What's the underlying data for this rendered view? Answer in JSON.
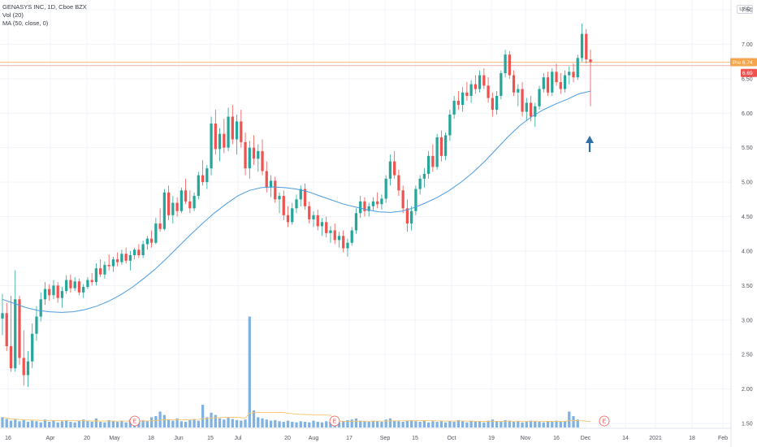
{
  "legend": {
    "symbol": "GENASYS INC, 1D, Cboe BZX",
    "volume": "Vol (20)",
    "ma": "MA (50, close, 0)"
  },
  "currency": "USD",
  "price_badges": {
    "orange": "6.74",
    "red": "6.69",
    "orange_prefix": "Pre"
  },
  "colors": {
    "up": "#26a69a",
    "down": "#ef5350",
    "ma": "#4a9be0",
    "volume_up": "#7fb2e0",
    "volume_down": "#7fb2e0",
    "volume_ma": "#f5c46a",
    "arrow": "#2f6fa8",
    "hline_orange": "#f5a64c",
    "hline_red": "#ef5350"
  },
  "chart_data": {
    "type": "candlestick",
    "y_axis": {
      "ticks": [
        "7.50",
        "7.00",
        "6.50",
        "6.00",
        "5.50",
        "5.00",
        "4.50",
        "4.00",
        "3.50",
        "3.00",
        "2.50",
        "2.00",
        "1.50"
      ],
      "range": [
        1.45,
        7.75
      ]
    },
    "x_axis": {
      "labels": [
        "16",
        "Apr",
        "20",
        "May",
        "18",
        "Jun",
        "15",
        "Jul",
        "20",
        "Aug",
        "17",
        "Sep",
        "15",
        "Oct",
        "19",
        "Nov",
        "16",
        "Dec",
        "14",
        "2021",
        "18",
        "Feb"
      ]
    },
    "price_lines": [
      6.74,
      6.69
    ],
    "earnings_markers": [
      "E",
      "E",
      "E"
    ],
    "candles": [
      [
        3.02,
        3.38,
        2.78,
        3.1
      ],
      [
        3.1,
        3.25,
        2.55,
        2.62
      ],
      [
        2.62,
        3.35,
        2.25,
        2.3
      ],
      [
        2.3,
        3.72,
        2.25,
        3.3
      ],
      [
        3.3,
        3.35,
        2.35,
        2.45
      ],
      [
        2.45,
        2.85,
        2.05,
        2.2
      ],
      [
        2.2,
        2.55,
        2.03,
        2.4
      ],
      [
        2.4,
        2.95,
        2.3,
        2.8
      ],
      [
        2.8,
        3.2,
        2.7,
        3.05
      ],
      [
        3.05,
        3.4,
        2.98,
        3.3
      ],
      [
        3.3,
        3.55,
        3.22,
        3.45
      ],
      [
        3.45,
        3.52,
        3.28,
        3.36
      ],
      [
        3.36,
        3.58,
        3.3,
        3.5
      ],
      [
        3.5,
        3.55,
        3.25,
        3.32
      ],
      [
        3.32,
        3.48,
        3.18,
        3.42
      ],
      [
        3.42,
        3.65,
        3.38,
        3.58
      ],
      [
        3.58,
        3.66,
        3.4,
        3.46
      ],
      [
        3.46,
        3.62,
        3.42,
        3.56
      ],
      [
        3.56,
        3.6,
        3.36,
        3.4
      ],
      [
        3.4,
        3.52,
        3.32,
        3.48
      ],
      [
        3.48,
        3.62,
        3.45,
        3.58
      ],
      [
        3.58,
        3.68,
        3.5,
        3.55
      ],
      [
        3.55,
        3.82,
        3.5,
        3.75
      ],
      [
        3.75,
        3.88,
        3.62,
        3.66
      ],
      [
        3.66,
        3.85,
        3.6,
        3.8
      ],
      [
        3.8,
        3.95,
        3.72,
        3.78
      ],
      [
        3.78,
        3.92,
        3.7,
        3.88
      ],
      [
        3.88,
        3.98,
        3.78,
        3.84
      ],
      [
        3.84,
        4.02,
        3.8,
        3.96
      ],
      [
        3.96,
        4.05,
        3.82,
        3.86
      ],
      [
        3.86,
        4.0,
        3.72,
        3.94
      ],
      [
        3.94,
        4.05,
        3.88,
        4.02
      ],
      [
        4.02,
        4.1,
        3.9,
        3.94
      ],
      [
        3.94,
        4.15,
        3.9,
        4.1
      ],
      [
        4.1,
        4.22,
        4.02,
        4.18
      ],
      [
        4.18,
        4.3,
        4.05,
        4.12
      ],
      [
        4.12,
        4.48,
        4.1,
        4.4
      ],
      [
        4.4,
        4.62,
        4.28,
        4.32
      ],
      [
        4.32,
        4.9,
        4.3,
        4.85
      ],
      [
        4.85,
        4.95,
        4.45,
        4.52
      ],
      [
        4.52,
        4.8,
        4.4,
        4.7
      ],
      [
        4.7,
        4.78,
        4.5,
        4.58
      ],
      [
        4.58,
        4.92,
        4.55,
        4.88
      ],
      [
        4.88,
        5.05,
        4.68,
        4.72
      ],
      [
        4.72,
        4.88,
        4.55,
        4.62
      ],
      [
        4.62,
        4.85,
        4.58,
        4.8
      ],
      [
        4.8,
        5.15,
        4.75,
        5.1
      ],
      [
        5.1,
        5.32,
        4.95,
        5.0
      ],
      [
        5.0,
        5.25,
        4.9,
        5.2
      ],
      [
        5.2,
        5.95,
        5.1,
        5.85
      ],
      [
        5.85,
        6.05,
        5.4,
        5.48
      ],
      [
        5.48,
        5.78,
        5.3,
        5.7
      ],
      [
        5.7,
        5.92,
        5.42,
        5.5
      ],
      [
        5.5,
        6.08,
        5.45,
        5.95
      ],
      [
        5.95,
        6.12,
        5.55,
        5.62
      ],
      [
        5.62,
        5.98,
        5.4,
        5.88
      ],
      [
        5.88,
        6.05,
        5.5,
        5.58
      ],
      [
        5.58,
        5.72,
        5.1,
        5.2
      ],
      [
        5.2,
        5.6,
        5.05,
        5.5
      ],
      [
        5.5,
        5.68,
        5.25,
        5.34
      ],
      [
        5.34,
        5.55,
        5.15,
        5.45
      ],
      [
        5.45,
        5.62,
        5.1,
        5.16
      ],
      [
        5.16,
        5.3,
        4.85,
        4.92
      ],
      [
        4.92,
        5.1,
        4.78,
        5.02
      ],
      [
        5.02,
        5.08,
        4.7,
        4.75
      ],
      [
        4.75,
        4.85,
        4.55,
        4.8
      ],
      [
        4.8,
        4.88,
        4.45,
        4.52
      ],
      [
        4.52,
        4.65,
        4.35,
        4.42
      ],
      [
        4.42,
        4.7,
        4.38,
        4.62
      ],
      [
        4.62,
        4.82,
        4.55,
        4.75
      ],
      [
        4.75,
        4.95,
        4.65,
        4.9
      ],
      [
        4.9,
        4.98,
        4.6,
        4.65
      ],
      [
        4.65,
        4.72,
        4.4,
        4.46
      ],
      [
        4.46,
        4.58,
        4.35,
        4.52
      ],
      [
        4.52,
        4.6,
        4.3,
        4.36
      ],
      [
        4.36,
        4.48,
        4.22,
        4.42
      ],
      [
        4.42,
        4.5,
        4.2,
        4.26
      ],
      [
        4.26,
        4.36,
        4.12,
        4.3
      ],
      [
        4.3,
        4.4,
        4.1,
        4.16
      ],
      [
        4.16,
        4.28,
        4.05,
        4.22
      ],
      [
        4.22,
        4.3,
        3.98,
        4.04
      ],
      [
        4.04,
        4.18,
        3.92,
        4.12
      ],
      [
        4.12,
        4.35,
        4.08,
        4.3
      ],
      [
        4.3,
        4.62,
        4.25,
        4.55
      ],
      [
        4.55,
        4.8,
        4.48,
        4.72
      ],
      [
        4.72,
        4.78,
        4.5,
        4.58
      ],
      [
        4.58,
        4.7,
        4.5,
        4.65
      ],
      [
        4.65,
        4.78,
        4.58,
        4.72
      ],
      [
        4.72,
        4.85,
        4.62,
        4.68
      ],
      [
        4.68,
        4.82,
        4.6,
        4.76
      ],
      [
        4.76,
        5.1,
        4.7,
        5.05
      ],
      [
        5.05,
        5.4,
        4.95,
        5.3
      ],
      [
        5.3,
        5.45,
        5.05,
        5.1
      ],
      [
        5.1,
        5.18,
        4.8,
        4.88
      ],
      [
        4.88,
        4.95,
        4.55,
        4.62
      ],
      [
        4.62,
        4.75,
        4.28,
        4.4
      ],
      [
        4.4,
        4.65,
        4.3,
        4.58
      ],
      [
        4.58,
        4.95,
        4.52,
        4.9
      ],
      [
        4.9,
        5.1,
        4.82,
        5.05
      ],
      [
        5.05,
        5.2,
        4.92,
        5.12
      ],
      [
        5.12,
        5.45,
        5.05,
        5.38
      ],
      [
        5.38,
        5.55,
        5.15,
        5.22
      ],
      [
        5.22,
        5.7,
        5.18,
        5.65
      ],
      [
        5.65,
        5.75,
        5.3,
        5.38
      ],
      [
        5.38,
        5.72,
        5.32,
        5.68
      ],
      [
        5.68,
        6.05,
        5.6,
        5.98
      ],
      [
        5.98,
        6.25,
        5.92,
        6.18
      ],
      [
        6.18,
        6.32,
        6.05,
        6.12
      ],
      [
        6.12,
        6.38,
        6.02,
        6.3
      ],
      [
        6.3,
        6.45,
        6.18,
        6.25
      ],
      [
        6.25,
        6.48,
        6.15,
        6.42
      ],
      [
        6.42,
        6.55,
        6.28,
        6.35
      ],
      [
        6.35,
        6.62,
        6.3,
        6.55
      ],
      [
        6.55,
        6.65,
        6.35,
        6.4
      ],
      [
        6.4,
        6.52,
        6.15,
        6.22
      ],
      [
        6.22,
        6.3,
        5.95,
        6.05
      ],
      [
        6.05,
        6.32,
        5.98,
        6.25
      ],
      [
        6.25,
        6.62,
        6.2,
        6.58
      ],
      [
        6.58,
        6.92,
        6.52,
        6.85
      ],
      [
        6.85,
        6.9,
        6.5,
        6.55
      ],
      [
        6.55,
        6.62,
        6.25,
        6.3
      ],
      [
        6.3,
        6.42,
        6.1,
        6.35
      ],
      [
        6.35,
        6.45,
        5.95,
        6.02
      ],
      [
        6.02,
        6.22,
        5.9,
        6.15
      ],
      [
        6.15,
        6.25,
        5.88,
        5.95
      ],
      [
        5.95,
        6.15,
        5.8,
        6.1
      ],
      [
        6.1,
        6.4,
        6.05,
        6.35
      ],
      [
        6.35,
        6.58,
        6.3,
        6.52
      ],
      [
        6.52,
        6.6,
        6.25,
        6.3
      ],
      [
        6.3,
        6.65,
        6.25,
        6.6
      ],
      [
        6.6,
        6.72,
        6.4,
        6.45
      ],
      [
        6.45,
        6.58,
        6.28,
        6.35
      ],
      [
        6.35,
        6.62,
        6.3,
        6.55
      ],
      [
        6.55,
        6.68,
        6.42,
        6.6
      ],
      [
        6.6,
        6.72,
        6.45,
        6.52
      ],
      [
        6.52,
        6.85,
        6.48,
        6.8
      ],
      [
        6.8,
        7.3,
        6.75,
        7.15
      ],
      [
        7.15,
        7.22,
        6.72,
        6.78
      ],
      [
        6.78,
        6.92,
        6.1,
        6.74
      ]
    ],
    "ma50": [
      3.3,
      3.24,
      3.18,
      3.14,
      3.12,
      3.11,
      3.12,
      3.15,
      3.2,
      3.27,
      3.36,
      3.47,
      3.6,
      3.74,
      3.9,
      4.07,
      4.24,
      4.4,
      4.55,
      4.68,
      4.8,
      4.88,
      4.92,
      4.93,
      4.92,
      4.9,
      4.86,
      4.8,
      4.74,
      4.68,
      4.64,
      4.6,
      4.57,
      4.56,
      4.58,
      4.63,
      4.7,
      4.78,
      4.88,
      5.0,
      5.14,
      5.3,
      5.48,
      5.66,
      5.82,
      5.95,
      6.05,
      6.13,
      6.2,
      6.28,
      6.32
    ],
    "volume": [
      0.18,
      0.15,
      0.12,
      0.14,
      0.11,
      0.13,
      0.1,
      0.12,
      0.11,
      0.09,
      0.14,
      0.1,
      0.12,
      0.09,
      0.11,
      0.13,
      0.1,
      0.09,
      0.12,
      0.14,
      0.11,
      0.1,
      0.16,
      0.1,
      0.09,
      0.13,
      0.11,
      0.1,
      0.12,
      0.09,
      0.14,
      0.11,
      0.1,
      0.13,
      0.12,
      0.18,
      0.2,
      0.28,
      0.22,
      0.14,
      0.12,
      0.16,
      0.11,
      0.1,
      0.13,
      0.15,
      0.12,
      0.4,
      0.18,
      0.26,
      0.22,
      0.16,
      0.14,
      0.17,
      0.15,
      0.13,
      0.12,
      0.14,
      1.95,
      0.3,
      0.18,
      0.16,
      0.14,
      0.12,
      0.13,
      0.11,
      0.1,
      0.12,
      0.1,
      0.09,
      0.11,
      0.1,
      0.09,
      0.12,
      0.1,
      0.09,
      0.11,
      0.1,
      0.12,
      0.09,
      0.11,
      0.13,
      0.14,
      0.16,
      0.12,
      0.11,
      0.1,
      0.12,
      0.11,
      0.1,
      0.14,
      0.16,
      0.12,
      0.11,
      0.1,
      0.12,
      0.13,
      0.11,
      0.1,
      0.12,
      0.09,
      0.11,
      0.1,
      0.12,
      0.09,
      0.11,
      0.1,
      0.13,
      0.11,
      0.09,
      0.12,
      0.1,
      0.11,
      0.09,
      0.12,
      0.14,
      0.11,
      0.1,
      0.13,
      0.12,
      0.1,
      0.11,
      0.09,
      0.1,
      0.12,
      0.11,
      0.1,
      0.09,
      0.11,
      0.1,
      0.12,
      0.1,
      0.11,
      0.28,
      0.2,
      0.14
    ]
  }
}
